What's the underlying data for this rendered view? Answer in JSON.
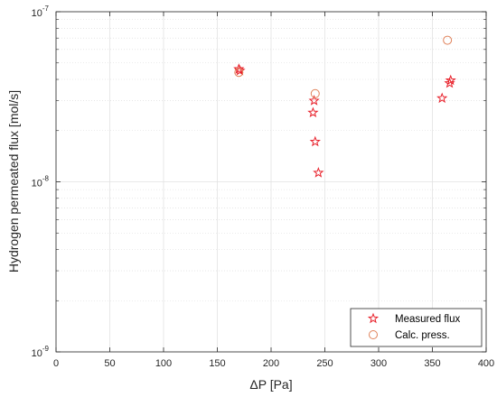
{
  "chart_data": {
    "type": "scatter",
    "xlabel": "ΔP [Pa]",
    "ylabel": "Hydrogen permeated flux [mol/s]",
    "xlim": [
      0,
      400
    ],
    "ylim": [
      1e-09,
      1e-07
    ],
    "yscale": "log",
    "grid": true,
    "legend_position": "bottom-right",
    "x_ticks": [
      0,
      50,
      100,
      150,
      200,
      250,
      300,
      350,
      400
    ],
    "x_tick_labels": [
      "0",
      "50",
      "100",
      "150",
      "200",
      "250",
      "300",
      "350",
      "400"
    ],
    "y_tick_labels": [
      {
        "value": 1e-09,
        "base": "10",
        "exp": "-9"
      },
      {
        "value": 1e-08,
        "base": "10",
        "exp": "-8"
      },
      {
        "value": 1e-07,
        "base": "10",
        "exp": "-7"
      }
    ],
    "series": [
      {
        "name": "Measured flux",
        "marker": "star",
        "color": "#e8202a",
        "points": [
          {
            "x": 170,
            "y": 4.6e-08
          },
          {
            "x": 171,
            "y": 4.5e-08
          },
          {
            "x": 240,
            "y": 3e-08
          },
          {
            "x": 239,
            "y": 2.55e-08
          },
          {
            "x": 241,
            "y": 1.72e-08
          },
          {
            "x": 244,
            "y": 1.13e-08
          },
          {
            "x": 359,
            "y": 3.1e-08
          },
          {
            "x": 366,
            "y": 3.8e-08
          },
          {
            "x": 367,
            "y": 3.95e-08
          }
        ]
      },
      {
        "name": "Calc. press.",
        "marker": "circle",
        "color": "#e0825a",
        "points": [
          {
            "x": 170,
            "y": 4.4e-08
          },
          {
            "x": 241,
            "y": 3.3e-08
          },
          {
            "x": 364,
            "y": 6.8e-08
          }
        ]
      }
    ]
  }
}
